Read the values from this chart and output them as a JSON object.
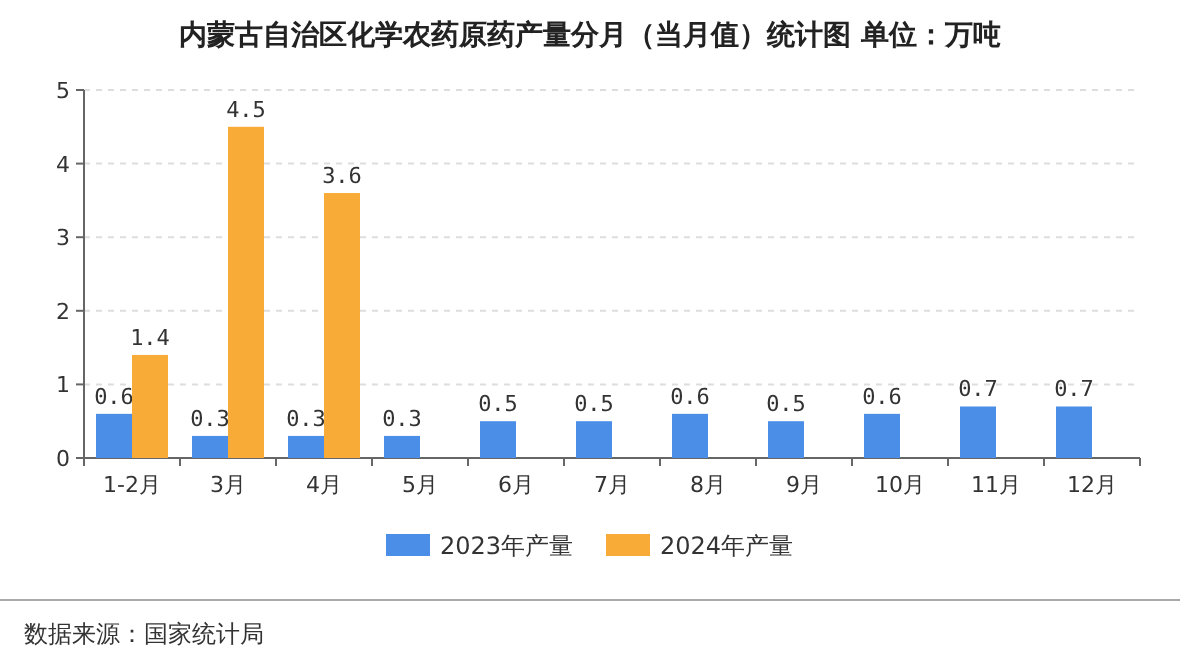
{
  "chart_data": {
    "type": "bar",
    "title": "内蒙古自治区化学农药原药产量分月（当月值）统计图 单位：万吨",
    "categories": [
      "1-2月",
      "3月",
      "4月",
      "5月",
      "6月",
      "7月",
      "8月",
      "9月",
      "10月",
      "11月",
      "12月"
    ],
    "series": [
      {
        "name": "2023年产量",
        "color": "#4a8ee8",
        "values": [
          0.6,
          0.3,
          0.3,
          0.3,
          0.5,
          0.5,
          0.6,
          0.5,
          0.6,
          0.7,
          0.7
        ]
      },
      {
        "name": "2024年产量",
        "color": "#f8ab37",
        "values": [
          1.4,
          4.5,
          3.6,
          null,
          null,
          null,
          null,
          null,
          null,
          null,
          null
        ]
      }
    ],
    "ylim": [
      0,
      5
    ],
    "yticks": [
      0,
      1,
      2,
      3,
      4,
      5
    ],
    "grid": "y",
    "legend": "bottom",
    "data_labels": true,
    "annotations": [
      "数据来源：国家统计局"
    ]
  }
}
